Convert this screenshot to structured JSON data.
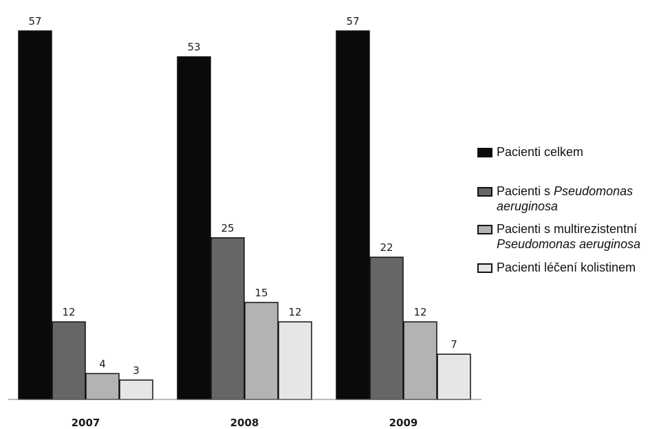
{
  "chart_data": {
    "type": "bar",
    "categories": [
      "2007",
      "2008",
      "2009"
    ],
    "series": [
      {
        "name": "Pacienti celkem",
        "values": [
          57,
          53,
          57
        ],
        "color": "#0a0a0a"
      },
      {
        "name": "Pacienti s Pseudomonas aeruginosa",
        "values": [
          12,
          25,
          22
        ],
        "color": "#666666"
      },
      {
        "name": "Pacienti s multirezistentní Pseudomonas aeruginosa",
        "values": [
          4,
          15,
          12
        ],
        "color": "#b3b3b3"
      },
      {
        "name": "Pacienti léčení kolistinem",
        "values": [
          3,
          12,
          7
        ],
        "color": "#e6e6e6"
      }
    ],
    "ylim": [
      0,
      57
    ],
    "grid": false,
    "legend_position": "right",
    "legend": {
      "item1": "Pacienti celkem",
      "item2_line1": "Pacienti s ",
      "item2_italic1": "Pseudomonas",
      "item2_italic2": "aeruginosa",
      "item3_line1": "Pacienti s multirezistentní",
      "item3_italic": "Pseudomonas aeruginosa",
      "item4": "Pacienti léčení kolistinem"
    }
  }
}
